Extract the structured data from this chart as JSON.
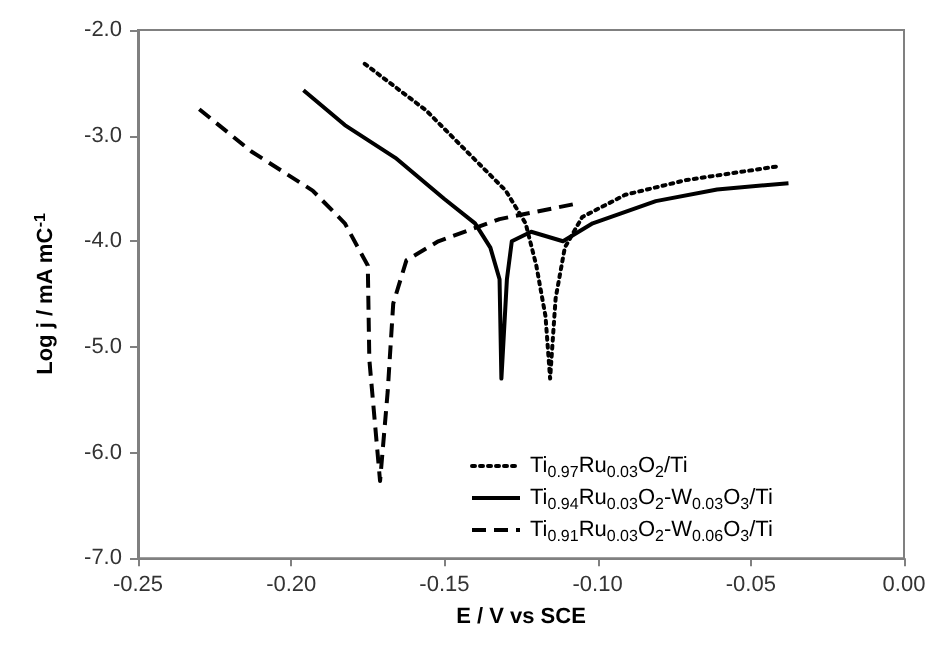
{
  "chart_data": {
    "type": "line",
    "xlabel": "E / V vs SCE",
    "ylabel": "Log j / mA mC$^{-1}$",
    "xlim": [
      -0.25,
      0
    ],
    "ylim": [
      -7,
      -2
    ],
    "xticks": [
      {
        "value": -0.25,
        "label": "-0.25"
      },
      {
        "value": -0.2,
        "label": "-0.20"
      },
      {
        "value": -0.15,
        "label": "-0.15"
      },
      {
        "value": -0.1,
        "label": "-0.10"
      },
      {
        "value": -0.05,
        "label": "-0.05"
      },
      {
        "value": 0,
        "label": "0.00"
      }
    ],
    "yticks": [
      {
        "value": -7,
        "label": "-7.0"
      },
      {
        "value": -6,
        "label": "-6.0"
      },
      {
        "value": -5,
        "label": "-5.0"
      },
      {
        "value": -4,
        "label": "-4.0"
      },
      {
        "value": -3,
        "label": "-3.0"
      },
      {
        "value": -2,
        "label": "-2.0"
      }
    ],
    "grid": false,
    "legend": "bottom right",
    "marker": "none",
    "series": [
      {
        "name": "Ti$_{0.97}$Ru$_{0.03}$O$_{2}$/Ti",
        "color": "#000000",
        "line_style": "dotted",
        "x": [
          -0.176,
          -0.156,
          -0.142,
          -0.13,
          -0.1235,
          -0.12,
          -0.117,
          -0.1155,
          -0.1137,
          -0.1107,
          -0.105,
          -0.091,
          -0.071,
          -0.041
        ],
        "values": [
          -2.32,
          -2.76,
          -3.17,
          -3.52,
          -3.83,
          -4.23,
          -4.71,
          -5.3,
          -4.54,
          -4.06,
          -3.77,
          -3.56,
          -3.42,
          -3.29
        ]
      },
      {
        "name": "Ti$_{0.94}$Ru$_{0.03}$O$_{2}$-W$_{0.03}$O$_{3}$/Ti",
        "color": "#000000",
        "line_style": "solid",
        "x": [
          -0.196,
          -0.1825,
          -0.166,
          -0.15,
          -0.14,
          -0.135,
          -0.132,
          -0.1314,
          -0.1296,
          -0.128,
          -0.1217,
          -0.1113,
          -0.1016,
          -0.081,
          -0.061,
          -0.0377
        ],
        "values": [
          -2.57,
          -2.9,
          -3.21,
          -3.6,
          -3.83,
          -4.06,
          -4.36,
          -5.3,
          -4.36,
          -4.0,
          -3.91,
          -4.0,
          -3.83,
          -3.62,
          -3.51,
          -3.45
        ]
      },
      {
        "name": "Ti$_{0.91}$Ru$_{0.03}$O$_{2}$-W$_{0.06}$O$_{3}$/Ti",
        "color": "#000000",
        "line_style": "dashed",
        "x": [
          -0.23,
          -0.213,
          -0.193,
          -0.1825,
          -0.175,
          -0.1745,
          -0.171,
          -0.1685,
          -0.1667,
          -0.1624,
          -0.152,
          -0.132,
          -0.108
        ],
        "values": [
          -2.75,
          -3.15,
          -3.52,
          -3.83,
          -4.23,
          -5.12,
          -6.27,
          -5.42,
          -4.59,
          -4.18,
          -4.0,
          -3.79,
          -3.65
        ]
      }
    ]
  }
}
